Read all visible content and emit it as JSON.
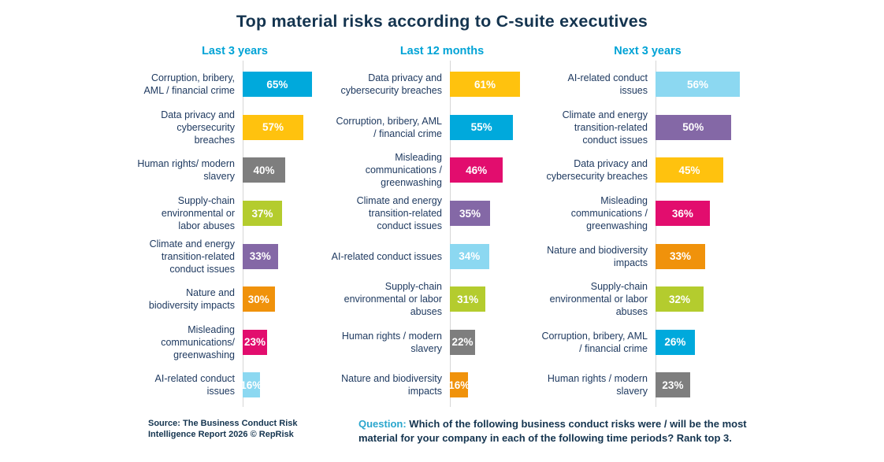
{
  "title": "Top material risks according to C-suite executives",
  "footer": {
    "source": "Source: The Business Conduct Risk\nIntelligence Report 2026 © RepRisk",
    "question_label": "Question:",
    "question_text": "Which of the following business conduct risks were / will be the most\nmaterial for your company in each of the following time periods? Rank top 3."
  },
  "colors": {
    "navy": "#14344F",
    "label_navy": "#1F3A60",
    "header_cyan": "#00A3D6",
    "axis_gray": "#D6D6D6",
    "bar_cyan": "#00A9DC",
    "bar_yellow": "#FFC20E",
    "bar_gray": "#7E7E7E",
    "bar_lime": "#B4CC2E",
    "bar_purple": "#8468A6",
    "bar_orange": "#F0920B",
    "bar_magenta": "#E20D6E",
    "bar_lightblue": "#8CD8F1"
  },
  "chart_data": {
    "type": "bar",
    "orientation": "horizontal",
    "unit": "%",
    "value_labels": "inside-center",
    "grid": false,
    "legend": false,
    "charts": [
      {
        "title": "Last 3 years",
        "items": [
          {
            "label": "Corruption, bribery,\nAML / financial crime",
            "value": 65,
            "color": "#00A9DC"
          },
          {
            "label": "Data privacy and\ncybersecurity\nbreaches",
            "value": 57,
            "color": "#FFC20E"
          },
          {
            "label": "Human rights/ modern\nslavery",
            "value": 40,
            "color": "#7E7E7E"
          },
          {
            "label": "Supply-chain\nenvironmental or\nlabor abuses",
            "value": 37,
            "color": "#B4CC2E"
          },
          {
            "label": "Climate and energy\ntransition-related\nconduct issues",
            "value": 33,
            "color": "#8468A6"
          },
          {
            "label": "Nature and\nbiodiversity impacts",
            "value": 30,
            "color": "#F0920B"
          },
          {
            "label": "Misleading\ncommunications/\ngreenwashing",
            "value": 23,
            "color": "#E20D6E"
          },
          {
            "label": "AI-related conduct\nissues",
            "value": 16,
            "color": "#8CD8F1"
          }
        ]
      },
      {
        "title": "Last 12 months",
        "items": [
          {
            "label": "Data privacy and\ncybersecurity breaches",
            "value": 61,
            "color": "#FFC20E"
          },
          {
            "label": "Corruption, bribery, AML\n/ financial crime",
            "value": 55,
            "color": "#00A9DC"
          },
          {
            "label": "Misleading\ncommunications /\ngreenwashing",
            "value": 46,
            "color": "#E20D6E"
          },
          {
            "label": "Climate and energy\ntransition-related\nconduct issues",
            "value": 35,
            "color": "#8468A6"
          },
          {
            "label": "AI-related conduct issues",
            "value": 34,
            "color": "#8CD8F1"
          },
          {
            "label": "Supply-chain\nenvironmental or labor\nabuses",
            "value": 31,
            "color": "#B4CC2E"
          },
          {
            "label": "Human rights / modern\nslavery",
            "value": 22,
            "color": "#7E7E7E"
          },
          {
            "label": "Nature and biodiversity\nimpacts",
            "value": 16,
            "color": "#F0920B"
          }
        ]
      },
      {
        "title": "Next 3 years",
        "items": [
          {
            "label": "AI-related conduct\nissues",
            "value": 56,
            "color": "#8CD8F1"
          },
          {
            "label": "Climate and energy\ntransition-related\nconduct issues",
            "value": 50,
            "color": "#8468A6"
          },
          {
            "label": "Data privacy and\ncybersecurity breaches",
            "value": 45,
            "color": "#FFC20E"
          },
          {
            "label": "Misleading\ncommunications /\ngreenwashing",
            "value": 36,
            "color": "#E20D6E"
          },
          {
            "label": "Nature and biodiversity\nimpacts",
            "value": 33,
            "color": "#F0920B"
          },
          {
            "label": "Supply-chain\nenvironmental or labor\nabuses",
            "value": 32,
            "color": "#B4CC2E"
          },
          {
            "label": "Corruption, bribery, AML\n/ financial crime",
            "value": 26,
            "color": "#00A9DC"
          },
          {
            "label": "Human rights / modern\nslavery",
            "value": 23,
            "color": "#7E7E7E"
          }
        ]
      }
    ]
  }
}
